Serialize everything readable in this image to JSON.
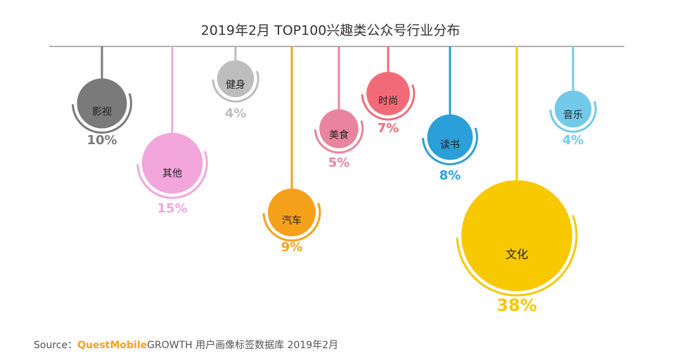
{
  "chart_data": {
    "type": "pendant",
    "title": "2019年2月 TOP100兴趣类公众号行业分布",
    "categories": [
      "影视",
      "其他",
      "健身",
      "汽车",
      "美食",
      "时尚",
      "读书",
      "音乐",
      "文化"
    ],
    "values": [
      10,
      15,
      4,
      9,
      5,
      7,
      8,
      4,
      38
    ],
    "value_labels": [
      "10%",
      "15%",
      "4%",
      "9%",
      "5%",
      "7%",
      "8%",
      "4%",
      "38%"
    ],
    "colors": [
      "#7a7a7a",
      "#f2a6dc",
      "#bdbdbd",
      "#f5a11c",
      "#e8849e",
      "#f26a78",
      "#2a9fd8",
      "#72c9ea",
      "#f8c800"
    ],
    "source": {
      "prefix": "Source：",
      "brand": "QuestMobile",
      "text": "GROWTH 用户画像标签数据库  2019年2月"
    }
  }
}
